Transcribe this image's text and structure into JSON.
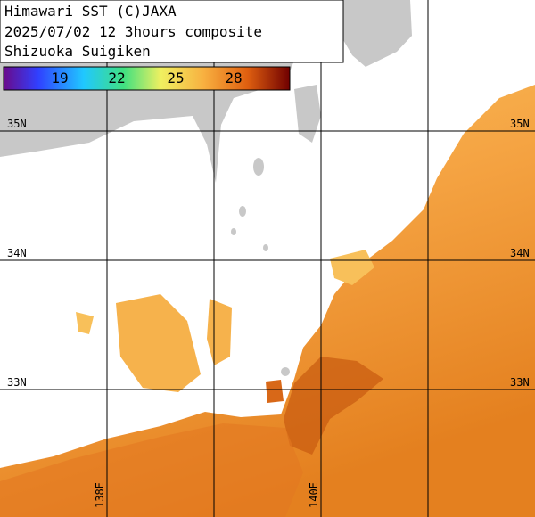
{
  "header": {
    "lines": [
      "Himawari SST (C)JAXA",
      "2025/07/02 12 3hours composite",
      "Shizuoka Suigiken"
    ]
  },
  "colorbar": {
    "labels": [
      "19",
      "22",
      "25",
      "28"
    ]
  },
  "lat_labels": [
    "35N",
    "34N",
    "33N"
  ],
  "lon_labels": [
    "138E",
    "140E"
  ]
}
